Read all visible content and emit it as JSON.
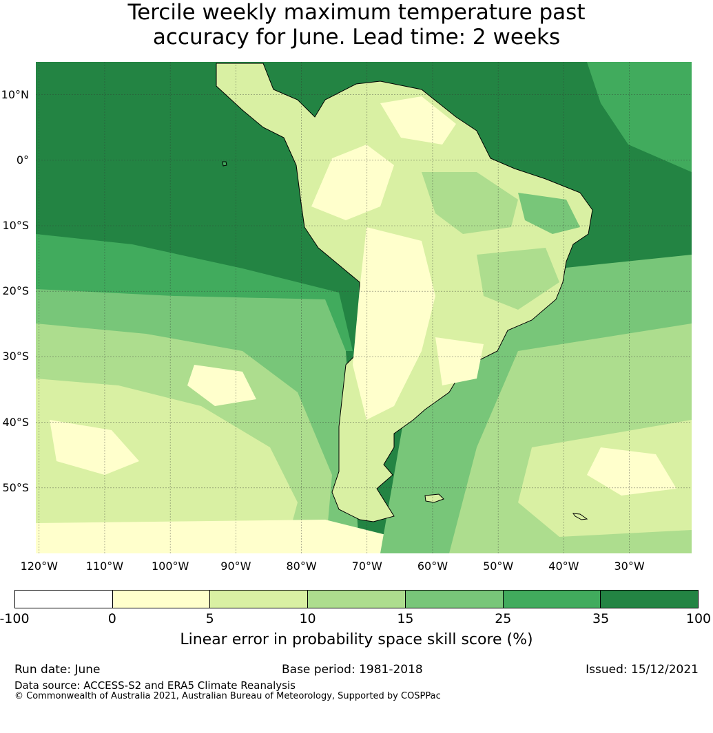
{
  "title_line1": "Tercile weekly maximum temperature past",
  "title_line2": "accuracy for June. Lead time: 2 weeks",
  "map": {
    "lat_labels": [
      "10°N",
      "0°",
      "10°S",
      "20°S",
      "30°S",
      "40°S",
      "50°S"
    ],
    "lon_labels": [
      "120°W",
      "110°W",
      "100°W",
      "90°W",
      "80°W",
      "70°W",
      "60°W",
      "50°W",
      "40°W",
      "30°W"
    ],
    "lat_values": [
      10,
      0,
      -10,
      -20,
      -30,
      -40,
      -50
    ],
    "lon_values": [
      -120,
      -110,
      -100,
      -90,
      -80,
      -70,
      -60,
      -50,
      -40,
      -30
    ],
    "extent": {
      "lon_min": -120.5,
      "lon_max": -20.5,
      "lat_min": -60,
      "lat_max": 15
    },
    "ocean_color": "#238b45",
    "land_color": "#d9f0a3"
  },
  "colorbar": {
    "ticks": [
      "-100",
      "0",
      "5",
      "10",
      "15",
      "25",
      "35",
      "100"
    ],
    "colors": [
      "#ffffff",
      "#ffffcc",
      "#d9f0a3",
      "#addd8e",
      "#78c679",
      "#41ab5d",
      "#238443"
    ],
    "label": "Linear error in probability space skill score (%)"
  },
  "footer": {
    "run_date": "Run date: June",
    "base_period": "Base period: 1981-2018",
    "issued": "Issued: 15/12/2021",
    "data_source": "Data source: ACCESS-S2 and ERA5 Climate Reanalysis",
    "copyright": "© Commonwealth of Australia 2021, Australian Bureau of Meteorology, Supported by COSPPac"
  }
}
